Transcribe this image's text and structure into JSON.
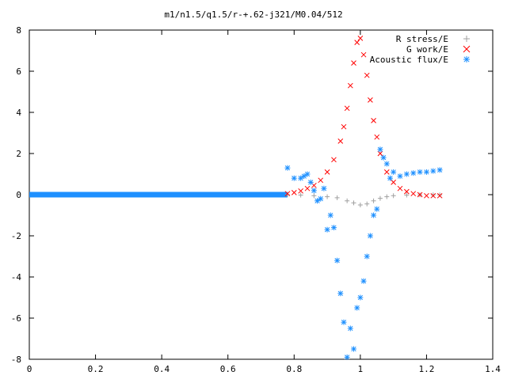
{
  "chart_data": {
    "type": "scatter",
    "title": "m1/n1.5/q1.5/r-+.62-j321/M0.04/512",
    "xlabel": "",
    "ylabel": "",
    "xlim": [
      0,
      1.4
    ],
    "ylim": [
      -8,
      8
    ],
    "grid": false,
    "legend_position": "top-right",
    "x_ticks": [
      "0",
      "0.2",
      "0.4",
      "0.6",
      "0.8",
      "1",
      "1.2",
      "1.4"
    ],
    "y_ticks": [
      "-8",
      "-6",
      "-4",
      "-2",
      "0",
      "2",
      "4",
      "6",
      "8"
    ],
    "series": [
      {
        "name": "R stress/E",
        "marker": "+",
        "color": "#a0a0a0",
        "x": [
          0.78,
          0.82,
          0.86,
          0.9,
          0.93,
          0.96,
          0.98,
          1.0,
          1.02,
          1.04,
          1.06,
          1.08,
          1.1,
          1.14,
          1.18,
          1.22,
          1.24
        ],
        "y": [
          0.0,
          -0.02,
          -0.05,
          -0.1,
          -0.15,
          -0.3,
          -0.4,
          -0.5,
          -0.45,
          -0.3,
          -0.18,
          -0.1,
          -0.05,
          -0.02,
          -0.01,
          -0.01,
          -0.01
        ]
      },
      {
        "name": "G work/E",
        "marker": "x",
        "color": "#ff0000",
        "x": [
          0.78,
          0.8,
          0.82,
          0.84,
          0.86,
          0.88,
          0.9,
          0.92,
          0.94,
          0.95,
          0.96,
          0.97,
          0.98,
          0.99,
          1.0,
          1.01,
          1.02,
          1.03,
          1.04,
          1.05,
          1.06,
          1.08,
          1.1,
          1.12,
          1.14,
          1.16,
          1.18,
          1.2,
          1.22,
          1.24
        ],
        "y": [
          0.05,
          0.1,
          0.18,
          0.3,
          0.45,
          0.7,
          1.1,
          1.7,
          2.6,
          3.3,
          4.2,
          5.3,
          6.4,
          7.4,
          7.6,
          6.8,
          5.8,
          4.6,
          3.6,
          2.8,
          2.0,
          1.1,
          0.6,
          0.3,
          0.15,
          0.05,
          0.0,
          -0.05,
          -0.05,
          -0.05
        ]
      },
      {
        "name": "Acoustic flux/E",
        "marker": "*",
        "color": "#1e90ff",
        "x": [
          0.78,
          0.8,
          0.82,
          0.83,
          0.84,
          0.85,
          0.86,
          0.87,
          0.88,
          0.89,
          0.9,
          0.91,
          0.92,
          0.93,
          0.94,
          0.95,
          0.96,
          0.97,
          0.98,
          0.99,
          1.0,
          1.01,
          1.02,
          1.03,
          1.04,
          1.05,
          1.06,
          1.07,
          1.08,
          1.09,
          1.1,
          1.12,
          1.14,
          1.16,
          1.18,
          1.2,
          1.22,
          1.24
        ],
        "y": [
          1.3,
          0.8,
          0.8,
          0.9,
          1.0,
          0.6,
          0.2,
          -0.3,
          -0.2,
          0.3,
          -1.7,
          -1.0,
          -1.6,
          -3.2,
          -4.8,
          -6.2,
          -7.9,
          -6.5,
          -7.5,
          -5.5,
          -5.0,
          -4.2,
          -3.0,
          -2.0,
          -1.0,
          -0.7,
          2.2,
          1.8,
          1.5,
          0.8,
          1.1,
          0.9,
          1.0,
          1.05,
          1.1,
          1.1,
          1.15,
          1.2
        ]
      }
    ],
    "flat_segment": {
      "x_start": 0.0,
      "x_end": 0.78,
      "y": 0.0,
      "series": "Acoustic flux/E"
    }
  }
}
